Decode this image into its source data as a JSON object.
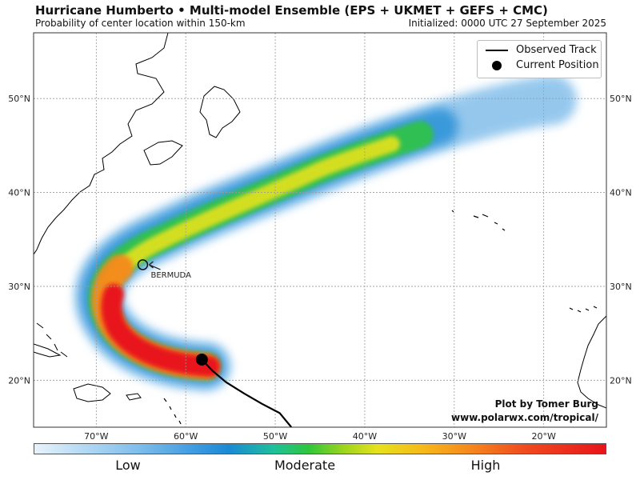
{
  "header": {
    "title": "Hurricane Humberto • Multi-model Ensemble (EPS + UKMET + GEFS + CMC)",
    "subtitle": "Probability of center location within 150-km",
    "initialized": "Initialized: 0000 UTC 27 September 2025"
  },
  "map": {
    "extent": {
      "lon_min": -77,
      "lon_max": -13,
      "lat_min": 15,
      "lat_max": 57
    },
    "lon_ticks": [
      {
        "lon": -70,
        "label": "70°W"
      },
      {
        "lon": -60,
        "label": "60°W"
      },
      {
        "lon": -50,
        "label": "50°W"
      },
      {
        "lon": -40,
        "label": "40°W"
      },
      {
        "lon": -30,
        "label": "30°W"
      },
      {
        "lon": -20,
        "label": "20°W"
      }
    ],
    "lat_ticks": [
      {
        "lat": 50,
        "label": "50°N"
      },
      {
        "lat": 40,
        "label": "40°N"
      },
      {
        "lat": 30,
        "label": "30°N"
      },
      {
        "lat": 20,
        "label": "20°N"
      }
    ],
    "colors": {
      "ocean": "#ffffff",
      "land": "#ffffff",
      "coast": "#000000",
      "grid": "#9a9a9a",
      "low": "#3f9be0",
      "moderate": "#2fc63b",
      "high": "#e8141b"
    },
    "observed_track": [
      [
        -48.2,
        15.0
      ],
      [
        -49.5,
        16.5
      ],
      [
        -51.5,
        17.5
      ],
      [
        -53.5,
        18.6
      ],
      [
        -55.5,
        19.8
      ],
      [
        -57.0,
        21.0
      ],
      [
        -58.2,
        22.2
      ]
    ],
    "current_position": {
      "lon": -58.2,
      "lat": 22.2
    },
    "bermuda": {
      "lon": -64.8,
      "lat": 32.3,
      "label": "BERMUDA"
    }
  },
  "legend": {
    "observed_track_label": "Observed Track",
    "current_position_label": "Current Position"
  },
  "credit": {
    "line1": "Plot by Tomer Burg",
    "line2": "www.polarwx.com/tropical/"
  },
  "colorbar": {
    "low": "Low",
    "moderate": "Moderate",
    "high": "High"
  }
}
